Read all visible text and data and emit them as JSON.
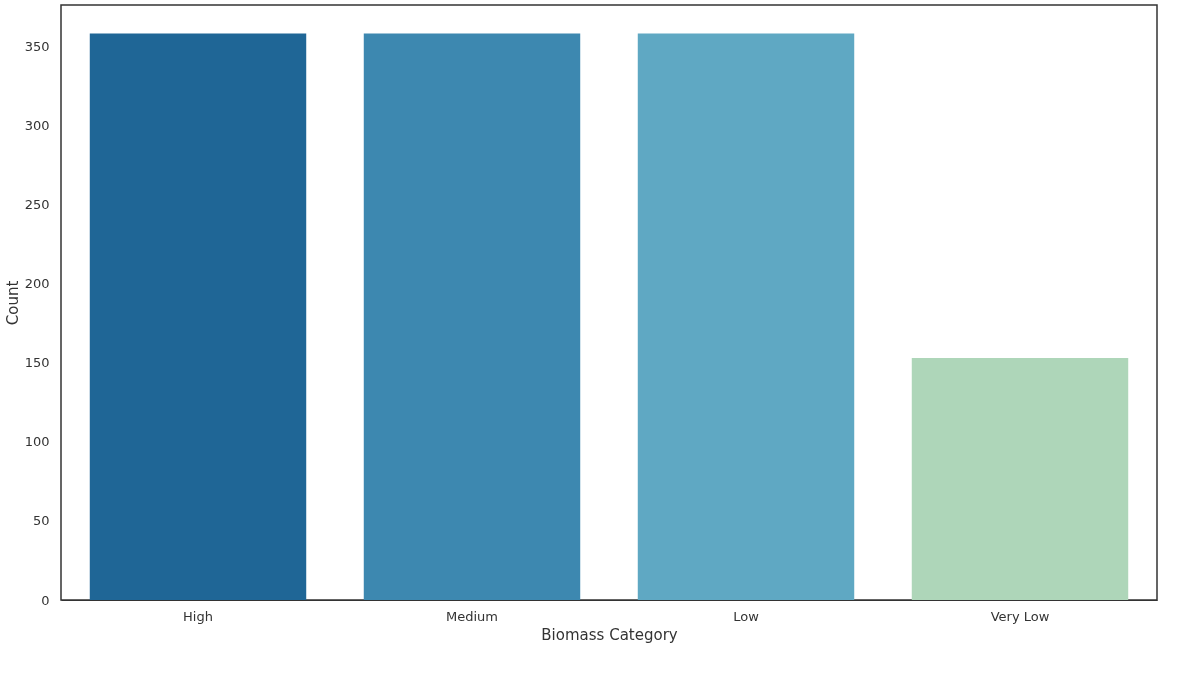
{
  "chart_data": {
    "type": "bar",
    "xlabel": "Biomass Category",
    "ylabel": "Count",
    "categories": [
      "High",
      "Medium",
      "Low",
      "Very Low"
    ],
    "values": [
      358,
      358,
      358,
      153
    ],
    "colors": [
      "#1f6696",
      "#3d88b0",
      "#5fa8c3",
      "#aed6b9"
    ],
    "ylim": [
      0,
      376
    ],
    "yticks": [
      0,
      50,
      100,
      150,
      200,
      250,
      300,
      350
    ],
    "grid": false,
    "legend": false
  }
}
